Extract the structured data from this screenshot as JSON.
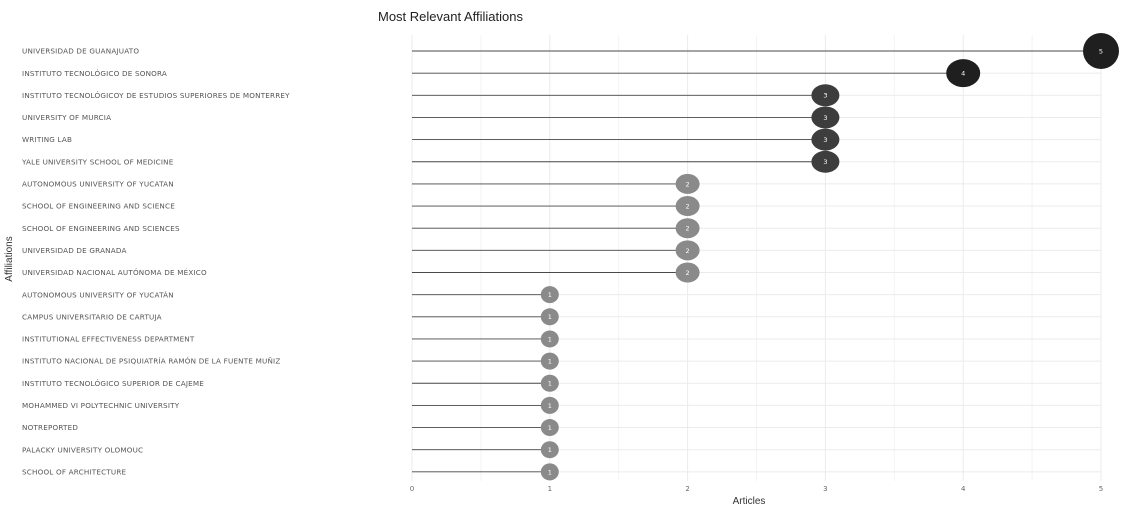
{
  "chart_data": {
    "type": "lollipop",
    "title": "Most Relevant Affiliations",
    "xlabel": "Articles",
    "ylabel": "Affiliations",
    "xlim": [
      0,
      5
    ],
    "xticks": [
      "0",
      "1",
      "2",
      "3",
      "4",
      "5"
    ],
    "grid": true,
    "categories": [
      "UNIVERSIDAD DE GUANAJUATO",
      "INSTITUTO TECNOLÓGICO DE SONORA",
      "INSTITUTO TECNOLÓGICOY DE ESTUDIOS SUPERIORES DE MONTERREY",
      "UNIVERSITY OF MURCIA",
      "WRITING LAB",
      "YALE UNIVERSITY SCHOOL OF MEDICINE",
      "AUTONOMOUS UNIVERSITY OF YUCATAN",
      "SCHOOL OF ENGINEERING AND SCIENCE",
      "SCHOOL OF ENGINEERING AND SCIENCES",
      "UNIVERSIDAD DE GRANADA",
      "UNIVERSIDAD NACIONAL AUTÓNOMA DE MÉXICO",
      "AUTONOMOUS UNIVERSITY OF YUCATÁN",
      "CAMPUS UNIVERSITARIO DE CARTUJA",
      "INSTITUTIONAL EFFECTIVENESS DEPARTMENT",
      "INSTITUTO NACIONAL DE PSIQUIATRÍA RAMÓN DE LA FUENTE MUÑIZ",
      "INSTITUTO TECNOLÓGICO SUPERIOR DE CAJEME",
      "MOHAMMED VI POLYTECHNIC UNIVERSITY",
      "NOTREPORTED",
      "PALACKY UNIVERSITY OLOMOUC",
      "SCHOOL OF ARCHITECTURE"
    ],
    "values": [
      5,
      4,
      3,
      3,
      3,
      3,
      2,
      2,
      2,
      2,
      2,
      1,
      1,
      1,
      1,
      1,
      1,
      1,
      1,
      1
    ],
    "dot_labels": [
      "5",
      "4",
      "3",
      "3",
      "3",
      "3",
      "2",
      "2",
      "2",
      "2",
      "2",
      "1",
      "1",
      "1",
      "1",
      "1",
      "1",
      "1",
      "1",
      "1"
    ],
    "colors": {
      "high": "#1f1f1f",
      "mid": "#3d3d3d",
      "low": "#8a8a8a",
      "stem": "#4a4a4a"
    }
  }
}
